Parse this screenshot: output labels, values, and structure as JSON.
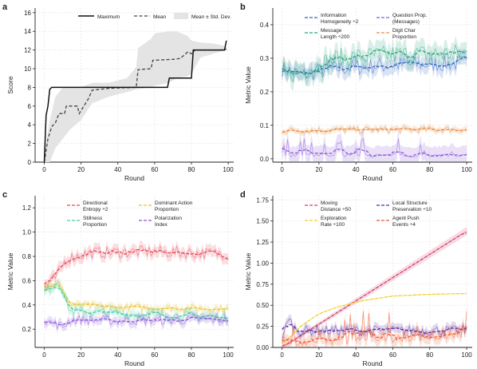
{
  "chart_data": [
    {
      "panel": "a",
      "type": "line",
      "xlabel": "Round",
      "ylabel": "Score",
      "xlim": [
        -5,
        103
      ],
      "ylim": [
        0,
        16.5
      ],
      "xticks": [
        0,
        20,
        40,
        60,
        80,
        100
      ],
      "yticks": [
        0,
        2,
        4,
        6,
        8,
        10,
        12,
        14,
        16
      ],
      "grid": true,
      "legend": "top",
      "series": [
        {
          "name": "Maximum",
          "style": "solid",
          "color": "#111111",
          "x": [
            0,
            1,
            2,
            3,
            4,
            67,
            68,
            80,
            81,
            98,
            99
          ],
          "y": [
            0,
            5,
            6,
            7.8,
            8,
            8,
            9,
            9,
            12,
            12,
            13
          ]
        },
        {
          "name": "Mean",
          "style": "dashed",
          "color": "#444444",
          "x": [
            0,
            2,
            4,
            6,
            8,
            11,
            12,
            18,
            19,
            24,
            26,
            35,
            50,
            51,
            58,
            59,
            70,
            74,
            78,
            80,
            82,
            96,
            99
          ],
          "y": [
            0,
            2.5,
            3.8,
            4.2,
            5.2,
            5.2,
            6,
            6,
            5.2,
            6.8,
            7.7,
            7.9,
            8,
            9.9,
            10,
            10.9,
            11,
            11.1,
            11.8,
            11.6,
            12,
            12,
            12.1
          ]
        },
        {
          "name": "Mean ± Std. Dev.",
          "style": "band",
          "color": "#dddddd",
          "x": [
            0,
            3,
            6,
            10,
            14,
            20,
            26,
            35,
            45,
            50,
            51,
            58,
            60,
            68,
            72,
            78,
            80,
            85,
            92,
            99
          ],
          "lo": [
            0,
            0,
            1.5,
            2.5,
            3.5,
            4.5,
            6.3,
            7,
            7.5,
            7.8,
            7.8,
            8,
            8.2,
            8.5,
            9,
            9.2,
            9.5,
            11.2,
            11.6,
            12
          ],
          "hi": [
            0.8,
            4.5,
            7,
            8,
            8,
            8,
            8.5,
            8.5,
            9,
            10.2,
            12.2,
            13.2,
            13.8,
            14,
            14,
            13.5,
            13,
            12.8,
            12.7,
            12.4
          ]
        }
      ]
    },
    {
      "panel": "b",
      "type": "line",
      "xlabel": "Round",
      "ylabel": "Metric Value",
      "xlim": [
        -5,
        103
      ],
      "ylim": [
        -0.01,
        0.45
      ],
      "xticks": [
        0,
        20,
        40,
        60,
        80,
        100
      ],
      "yticks": [
        0.0,
        0.1,
        0.2,
        0.3,
        0.4
      ],
      "grid": true,
      "legend": "top",
      "series": [
        {
          "name": "Information Homogeneity ÷2",
          "color": "#2b62c0",
          "base": 0.28,
          "noise": 0.025,
          "trend": [
            [
              0,
              0.27
            ],
            [
              10,
              0.25
            ],
            [
              30,
              0.27
            ],
            [
              60,
              0.28
            ],
            [
              100,
              0.285
            ]
          ]
        },
        {
          "name": "Question Prop. (Messages)",
          "color": "#8a5bd6",
          "base": 0.01,
          "noise": 0.03,
          "trend": [
            [
              0,
              0.01
            ],
            [
              100,
              0.01
            ]
          ]
        },
        {
          "name": "Message Length ÷200",
          "color": "#27a57a",
          "base": 0.3,
          "noise": 0.03,
          "trend": [
            [
              0,
              0.25
            ],
            [
              10,
              0.26
            ],
            [
              30,
              0.3
            ],
            [
              60,
              0.31
            ],
            [
              100,
              0.315
            ]
          ]
        },
        {
          "name": "Digit Char Proportion",
          "color": "#e98a3e",
          "base": 0.085,
          "noise": 0.01,
          "trend": [
            [
              0,
              0.085
            ],
            [
              100,
              0.088
            ]
          ]
        }
      ]
    },
    {
      "panel": "c",
      "type": "line",
      "xlabel": "Round",
      "ylabel": "Metric Value",
      "xlim": [
        -5,
        103
      ],
      "ylim": [
        0.05,
        1.3
      ],
      "xticks": [
        0,
        20,
        40,
        60,
        80,
        100
      ],
      "yticks": [
        0.2,
        0.4,
        0.6,
        0.8,
        1.0,
        1.2
      ],
      "grid": true,
      "legend": "top",
      "series": [
        {
          "name": "Directional Entropy ÷2",
          "color": "#e8475a",
          "trend": [
            [
              0,
              0.55
            ],
            [
              6,
              0.62
            ],
            [
              12,
              0.78
            ],
            [
              25,
              0.83
            ],
            [
              60,
              0.84
            ],
            [
              100,
              0.82
            ]
          ],
          "noise": 0.05
        },
        {
          "name": "Dominant Action Proportion",
          "color": "#e8c42e",
          "trend": [
            [
              0,
              0.55
            ],
            [
              8,
              0.58
            ],
            [
              14,
              0.4
            ],
            [
              40,
              0.38
            ],
            [
              100,
              0.37
            ]
          ],
          "noise": 0.03
        },
        {
          "name": "Stillness Proportion",
          "color": "#43cfa0",
          "trend": [
            [
              0,
              0.5
            ],
            [
              8,
              0.6
            ],
            [
              14,
              0.35
            ],
            [
              40,
              0.33
            ],
            [
              100,
              0.3
            ]
          ],
          "noise": 0.04
        },
        {
          "name": "Polarization Index",
          "color": "#8d55d8",
          "trend": [
            [
              0,
              0.28
            ],
            [
              10,
              0.22
            ],
            [
              14,
              0.28
            ],
            [
              40,
              0.27
            ],
            [
              100,
              0.28
            ]
          ],
          "noise": 0.04
        }
      ]
    },
    {
      "panel": "d",
      "type": "line",
      "xlabel": "Round",
      "ylabel": "Metric Value",
      "xlim": [
        -5,
        103
      ],
      "ylim": [
        0,
        1.8
      ],
      "xticks": [
        0,
        20,
        40,
        60,
        80,
        100
      ],
      "yticks": [
        0.0,
        0.25,
        0.5,
        0.75,
        1.0,
        1.25,
        1.5,
        1.75
      ],
      "grid": true,
      "legend": "top",
      "series": [
        {
          "name": "Moving Distance ÷50",
          "color": "#d63c6a",
          "trend": [
            [
              0,
              0.0
            ],
            [
              100,
              1.38
            ]
          ],
          "noise": 0.0
        },
        {
          "name": "Local Structure Preservation ÷10",
          "color": "#5a2a9e",
          "trend": [
            [
              0,
              0.05
            ],
            [
              3,
              0.35
            ],
            [
              8,
              0.2
            ],
            [
              100,
              0.2
            ]
          ],
          "noise": 0.06
        },
        {
          "name": "Exploration Rate ÷100",
          "color": "#f2d22e",
          "trend": [
            [
              0,
              0.02
            ],
            [
              10,
              0.25
            ],
            [
              20,
              0.4
            ],
            [
              30,
              0.48
            ],
            [
              45,
              0.56
            ],
            [
              60,
              0.61
            ],
            [
              80,
              0.63
            ],
            [
              100,
              0.64
            ]
          ],
          "noise": 0.0
        },
        {
          "name": "Agent Push Events ÷4",
          "color": "#f0592f",
          "trend": [
            [
              0,
              0.05
            ],
            [
              100,
              0.15
            ]
          ],
          "noise": 0.08
        }
      ]
    }
  ],
  "panel_labels": [
    "a",
    "b",
    "c",
    "d"
  ],
  "legend_text": {
    "a": [
      "Maximum",
      "Mean",
      "Mean ± Std. Dev."
    ],
    "b": [
      [
        "Information",
        "Homogeneity ÷2"
      ],
      [
        "Question Prop.",
        "(Messages)"
      ],
      [
        "Message",
        "Length ÷200"
      ],
      [
        "Digit Char",
        "Proportion"
      ]
    ],
    "c": [
      [
        "Directional",
        "Entropy ÷2"
      ],
      [
        "Dominant Action",
        "Proportion"
      ],
      [
        "Stillness",
        "Proportion"
      ],
      [
        "Polarization",
        "Index"
      ]
    ],
    "d": [
      [
        "Moving",
        "Distance ÷50"
      ],
      [
        "Local Structure",
        "Preservation ÷10"
      ],
      [
        "Exploration",
        "Rate ÷100"
      ],
      [
        "Agent Push",
        "Events ÷4"
      ]
    ]
  }
}
